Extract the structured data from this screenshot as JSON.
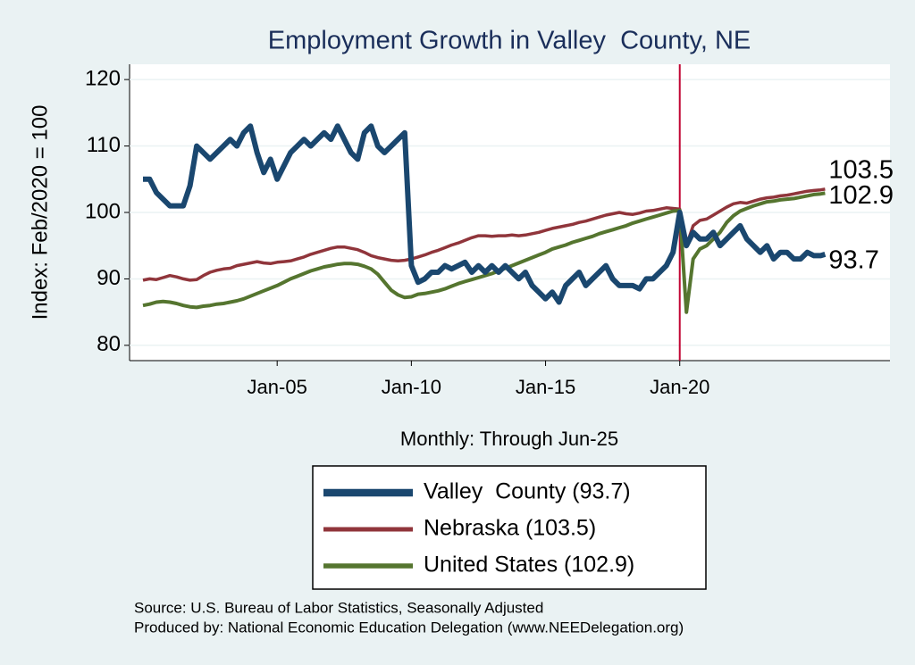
{
  "chart_data": {
    "type": "line",
    "title": "Employment Growth in Valley  County, NE",
    "x_label": "Monthly: Through Jun-25",
    "y_label": "Index: Feb/2020 = 100",
    "x": [
      "2000-01",
      "2000-04",
      "2000-07",
      "2000-10",
      "2001-01",
      "2001-04",
      "2001-07",
      "2001-10",
      "2002-01",
      "2002-04",
      "2002-07",
      "2002-10",
      "2003-01",
      "2003-04",
      "2003-07",
      "2003-10",
      "2004-01",
      "2004-04",
      "2004-07",
      "2004-10",
      "2005-01",
      "2005-04",
      "2005-07",
      "2005-10",
      "2006-01",
      "2006-04",
      "2006-07",
      "2006-10",
      "2007-01",
      "2007-04",
      "2007-07",
      "2007-10",
      "2008-01",
      "2008-04",
      "2008-07",
      "2008-10",
      "2009-01",
      "2009-04",
      "2009-07",
      "2009-10",
      "2010-01",
      "2010-04",
      "2010-07",
      "2010-10",
      "2011-01",
      "2011-04",
      "2011-07",
      "2011-10",
      "2012-01",
      "2012-04",
      "2012-07",
      "2012-10",
      "2013-01",
      "2013-04",
      "2013-07",
      "2013-10",
      "2014-01",
      "2014-04",
      "2014-07",
      "2014-10",
      "2015-01",
      "2015-04",
      "2015-07",
      "2015-10",
      "2016-01",
      "2016-04",
      "2016-07",
      "2016-10",
      "2017-01",
      "2017-04",
      "2017-07",
      "2017-10",
      "2018-01",
      "2018-04",
      "2018-07",
      "2018-10",
      "2019-01",
      "2019-04",
      "2019-07",
      "2019-10",
      "2020-01",
      "2020-04",
      "2020-07",
      "2020-10",
      "2021-01",
      "2021-04",
      "2021-07",
      "2021-10",
      "2022-01",
      "2022-04",
      "2022-07",
      "2022-10",
      "2023-01",
      "2023-04",
      "2023-07",
      "2023-10",
      "2024-01",
      "2024-04",
      "2024-07",
      "2024-10",
      "2025-01",
      "2025-04",
      "2025-06"
    ],
    "series": [
      {
        "name": "Valley  County (93.7)",
        "color": "#1a476f",
        "width": 6,
        "end_label": 93.7,
        "values": [
          105,
          105,
          103,
          102,
          101,
          101,
          101,
          104,
          110,
          109,
          108,
          109,
          110,
          111,
          110,
          112,
          113,
          109,
          106,
          108,
          105,
          107,
          109,
          110,
          111,
          110,
          111,
          112,
          111,
          113,
          111,
          109,
          108,
          112,
          113,
          110,
          109,
          110,
          111,
          112,
          92,
          89.5,
          90,
          91,
          91,
          92,
          91.5,
          92,
          92.5,
          91,
          92,
          91,
          92,
          91,
          92,
          91,
          90,
          91,
          89,
          88,
          87,
          88,
          86.5,
          89,
          90,
          91,
          89,
          90,
          91,
          92,
          90,
          89,
          89,
          89,
          88.5,
          90,
          90,
          91,
          92,
          94,
          100,
          95,
          97,
          96,
          96,
          97,
          95,
          96,
          97,
          98,
          96,
          95,
          94,
          95,
          93,
          94,
          94,
          93,
          93,
          94,
          93.5,
          93.5,
          93.7
        ]
      },
      {
        "name": "Nebraska (103.5)",
        "color": "#90353b",
        "width": 3.5,
        "end_label": 103.5,
        "values": [
          89.8,
          90,
          89.9,
          90.2,
          90.5,
          90.3,
          90,
          89.8,
          89.9,
          90.5,
          91,
          91.3,
          91.5,
          91.6,
          92,
          92.2,
          92.4,
          92.6,
          92.4,
          92.3,
          92.5,
          92.6,
          92.7,
          93,
          93.3,
          93.7,
          94,
          94.3,
          94.6,
          94.8,
          94.8,
          94.6,
          94.4,
          94,
          93.5,
          93.2,
          93,
          92.8,
          92.7,
          92.8,
          93,
          93.3,
          93.6,
          94,
          94.3,
          94.7,
          95.1,
          95.4,
          95.8,
          96.2,
          96.5,
          96.5,
          96.4,
          96.5,
          96.5,
          96.6,
          96.5,
          96.6,
          96.8,
          97,
          97.3,
          97.6,
          97.8,
          98,
          98.2,
          98.5,
          98.7,
          99,
          99.3,
          99.6,
          99.8,
          100,
          99.8,
          99.7,
          99.9,
          100.2,
          100.3,
          100.5,
          100.7,
          100.6,
          100.5,
          95,
          98,
          98.8,
          99,
          99.6,
          100.2,
          100.8,
          101.3,
          101.5,
          101.4,
          101.7,
          102,
          102.2,
          102.3,
          102.5,
          102.6,
          102.8,
          103,
          103.2,
          103.3,
          103.4,
          103.5
        ]
      },
      {
        "name": "United States (102.9)",
        "color": "#55752f",
        "width": 4,
        "end_label": 102.9,
        "values": [
          86,
          86.2,
          86.5,
          86.6,
          86.5,
          86.3,
          86,
          85.8,
          85.7,
          85.9,
          86,
          86.2,
          86.3,
          86.5,
          86.7,
          87,
          87.4,
          87.8,
          88.2,
          88.6,
          89,
          89.5,
          90,
          90.4,
          90.8,
          91.2,
          91.5,
          91.8,
          92,
          92.2,
          92.3,
          92.3,
          92.2,
          91.9,
          91.5,
          90.7,
          89.5,
          88.3,
          87.6,
          87.2,
          87.3,
          87.7,
          87.8,
          88,
          88.2,
          88.5,
          88.9,
          89.3,
          89.6,
          89.9,
          90.2,
          90.5,
          90.8,
          91.2,
          91.6,
          92,
          92.4,
          92.8,
          93.2,
          93.6,
          94,
          94.5,
          94.8,
          95.1,
          95.5,
          95.8,
          96.1,
          96.4,
          96.8,
          97.1,
          97.4,
          97.7,
          98,
          98.4,
          98.7,
          99,
          99.3,
          99.6,
          99.9,
          100.2,
          100.3,
          85,
          93,
          94.5,
          95,
          96,
          97,
          98.5,
          99.5,
          100.2,
          100.6,
          101,
          101.3,
          101.6,
          101.7,
          101.9,
          102,
          102.1,
          102.3,
          102.5,
          102.7,
          102.8,
          102.9
        ]
      }
    ],
    "xlim": [
      "1999-07",
      "2027-11"
    ],
    "xticks": [
      {
        "value": "2005-01",
        "label": "Jan-05"
      },
      {
        "value": "2010-01",
        "label": "Jan-10"
      },
      {
        "value": "2015-01",
        "label": "Jan-15"
      },
      {
        "value": "2020-01",
        "label": "Jan-20"
      }
    ],
    "ylim": [
      77.7,
      122.3
    ],
    "yticks": [
      80,
      90,
      100,
      110,
      120
    ],
    "grid": true,
    "vline": {
      "value": "2020-01",
      "color": "#c10534"
    },
    "notes": [
      "Source: U.S. Bureau of Labor Statistics, Seasonally Adjusted",
      "Produced by: National Economic Education Delegation (www.NEEDelegation.org)"
    ]
  }
}
